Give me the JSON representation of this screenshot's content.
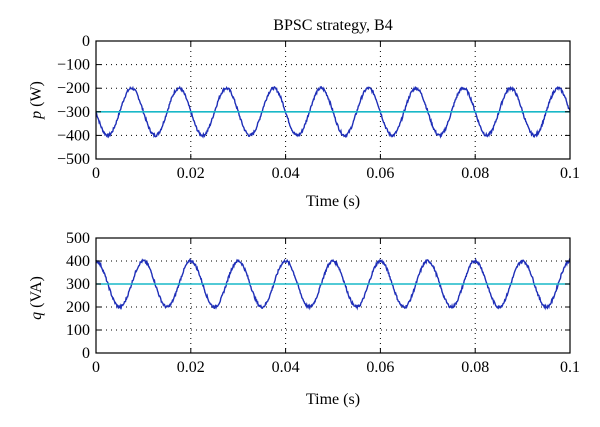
{
  "chart_data": [
    {
      "type": "line",
      "title": "BPSC strategy, B4",
      "xlabel": "Time (s)",
      "ylabel_symbol": "p",
      "ylabel_unit": " (W)",
      "xlim": [
        0,
        0.1
      ],
      "ylim": [
        -500,
        0
      ],
      "x_ticks": [
        0,
        0.02,
        0.04,
        0.06,
        0.08,
        0.1
      ],
      "x_tick_labels": [
        "0",
        "0.02",
        "0.04",
        "0.06",
        "0.08",
        "0.1"
      ],
      "y_ticks": [
        0,
        -100,
        -200,
        -300,
        -400,
        -500
      ],
      "y_tick_labels": [
        "0",
        "−100",
        "−200",
        "−300",
        "−400",
        "−500"
      ],
      "grid": true,
      "series": [
        {
          "color": "#1f2fb8",
          "kind": "sinusoid",
          "mean": -300,
          "amplitude": 100,
          "period": 0.01,
          "phase_x": 0.0075,
          "phase_type": "max",
          "x": [
            0,
            0.0025,
            0.005,
            0.0075,
            0.01,
            0.0125,
            0.015,
            0.0175,
            0.02,
            0.0225,
            0.025,
            0.0275,
            0.03,
            0.0325,
            0.035,
            0.0375,
            0.04,
            0.0425,
            0.045,
            0.0475,
            0.05,
            0.0525,
            0.055,
            0.0575,
            0.06,
            0.0625,
            0.065,
            0.0675,
            0.07,
            0.0725,
            0.075,
            0.0775,
            0.08,
            0.0825,
            0.085,
            0.0875,
            0.09,
            0.0925,
            0.095,
            0.0975,
            0.1
          ],
          "y": [
            -300,
            -400,
            -300,
            -200,
            -300,
            -400,
            -300,
            -200,
            -300,
            -400,
            -300,
            -200,
            -300,
            -400,
            -300,
            -200,
            -300,
            -400,
            -300,
            -200,
            -300,
            -400,
            -300,
            -200,
            -300,
            -400,
            -300,
            -200,
            -300,
            -400,
            -300,
            -200,
            -300,
            -400,
            -300,
            -200,
            -300,
            -400,
            -300,
            -200,
            -300
          ]
        },
        {
          "color": "#19b8c8",
          "kind": "constant",
          "x": [
            0,
            0.1
          ],
          "y": [
            -300,
            -300
          ]
        }
      ]
    },
    {
      "type": "line",
      "title": "",
      "xlabel": "Time (s)",
      "ylabel_symbol": "q",
      "ylabel_unit": " (VA)",
      "xlim": [
        0,
        0.1
      ],
      "ylim": [
        0,
        500
      ],
      "x_ticks": [
        0,
        0.02,
        0.04,
        0.06,
        0.08,
        0.1
      ],
      "x_tick_labels": [
        "0",
        "0.02",
        "0.04",
        "0.06",
        "0.08",
        "0.1"
      ],
      "y_ticks": [
        500,
        400,
        300,
        200,
        100,
        0
      ],
      "y_tick_labels": [
        "500",
        "400",
        "300",
        "200",
        "100",
        "0"
      ],
      "grid": true,
      "series": [
        {
          "color": "#1f2fb8",
          "kind": "sinusoid",
          "mean": 300,
          "amplitude": 100,
          "period": 0.01,
          "phase_x": 0.0,
          "phase_type": "max",
          "x": [
            0,
            0.0025,
            0.005,
            0.0075,
            0.01,
            0.0125,
            0.015,
            0.0175,
            0.02,
            0.0225,
            0.025,
            0.0275,
            0.03,
            0.0325,
            0.035,
            0.0375,
            0.04,
            0.0425,
            0.045,
            0.0475,
            0.05,
            0.0525,
            0.055,
            0.0575,
            0.06,
            0.0625,
            0.065,
            0.0675,
            0.07,
            0.0725,
            0.075,
            0.0775,
            0.08,
            0.0825,
            0.085,
            0.0875,
            0.09,
            0.0925,
            0.095,
            0.0975,
            0.1
          ],
          "y": [
            400,
            300,
            200,
            300,
            400,
            300,
            200,
            300,
            400,
            300,
            200,
            300,
            400,
            300,
            200,
            300,
            400,
            300,
            200,
            300,
            400,
            300,
            200,
            300,
            400,
            300,
            200,
            300,
            400,
            300,
            200,
            300,
            400,
            300,
            200,
            300,
            400,
            300,
            200,
            300,
            400
          ]
        },
        {
          "color": "#19b8c8",
          "kind": "constant",
          "x": [
            0,
            0.1
          ],
          "y": [
            300,
            300
          ]
        }
      ]
    }
  ]
}
